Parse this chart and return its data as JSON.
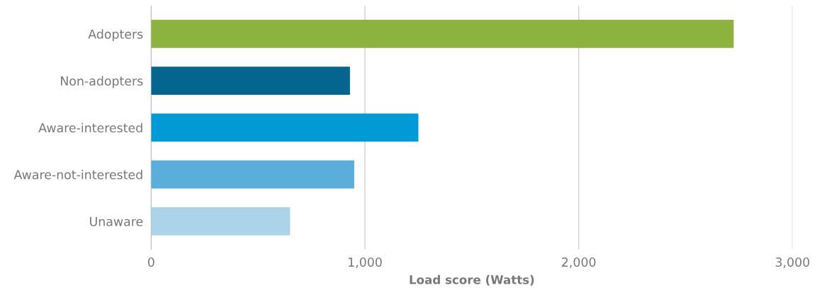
{
  "chart_data": {
    "type": "bar",
    "orientation": "horizontal",
    "xlabel": "Load score (Watts)",
    "categories": [
      "Adopters",
      "Non-adopters",
      "Aware-interested",
      "Aware-not-interested",
      "Unaware"
    ],
    "values": [
      2725,
      930,
      1250,
      950,
      650
    ],
    "colors": [
      "#8cb33e",
      "#04668f",
      "#009bd6",
      "#5aaedb",
      "#acd4e8"
    ],
    "xlim": [
      0,
      3000
    ],
    "xticks": [
      0,
      {
        "value": 1000,
        "label": "1,000"
      },
      {
        "value": 2000,
        "label": "2,000"
      },
      {
        "value": 3000,
        "label": "3,000"
      }
    ],
    "grid": "x"
  }
}
